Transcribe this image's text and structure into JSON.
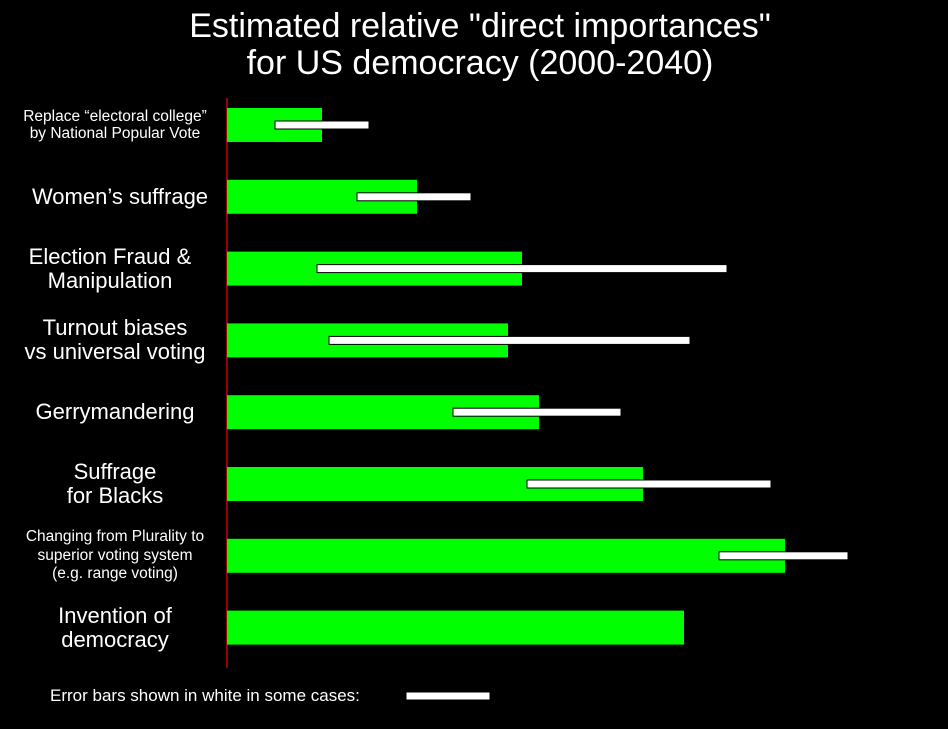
{
  "chart_data": {
    "type": "bar",
    "orientation": "horizontal",
    "title_lines": [
      "Estimated relative \"direct importances\"",
      "for US democracy (2000-2040)"
    ],
    "categories": [
      "Replace “electoral college”\nby National Popular Vote",
      "Women’s suffrage",
      "Election Fraud &\nManipulation",
      "Turnout biases\nvs universal voting",
      "Gerrymandering",
      "Suffrage\nfor Blacks",
      "Changing from Plurality to\nsuperior voting system\n(e.g. range voting)",
      "Invention of\ndemocracy"
    ],
    "values": [
      0.95,
      1.9,
      2.95,
      2.81,
      3.12,
      4.16,
      5.58,
      4.57
    ],
    "error_bars": [
      [
        0.48,
        1.42
      ],
      [
        1.3,
        2.44
      ],
      [
        0.9,
        5.0
      ],
      [
        1.02,
        4.63
      ],
      [
        2.26,
        3.94
      ],
      [
        3.0,
        5.44
      ],
      [
        4.92,
        6.21
      ],
      null
    ],
    "xlim": [
      0,
      6.6
    ],
    "grid": false,
    "legend_text": "Error bars shown in white in some cases:",
    "colors": {
      "bar": "#00ff00",
      "error_bar": "#ffffff",
      "axis": "#cc0000",
      "background": "#000000"
    }
  }
}
